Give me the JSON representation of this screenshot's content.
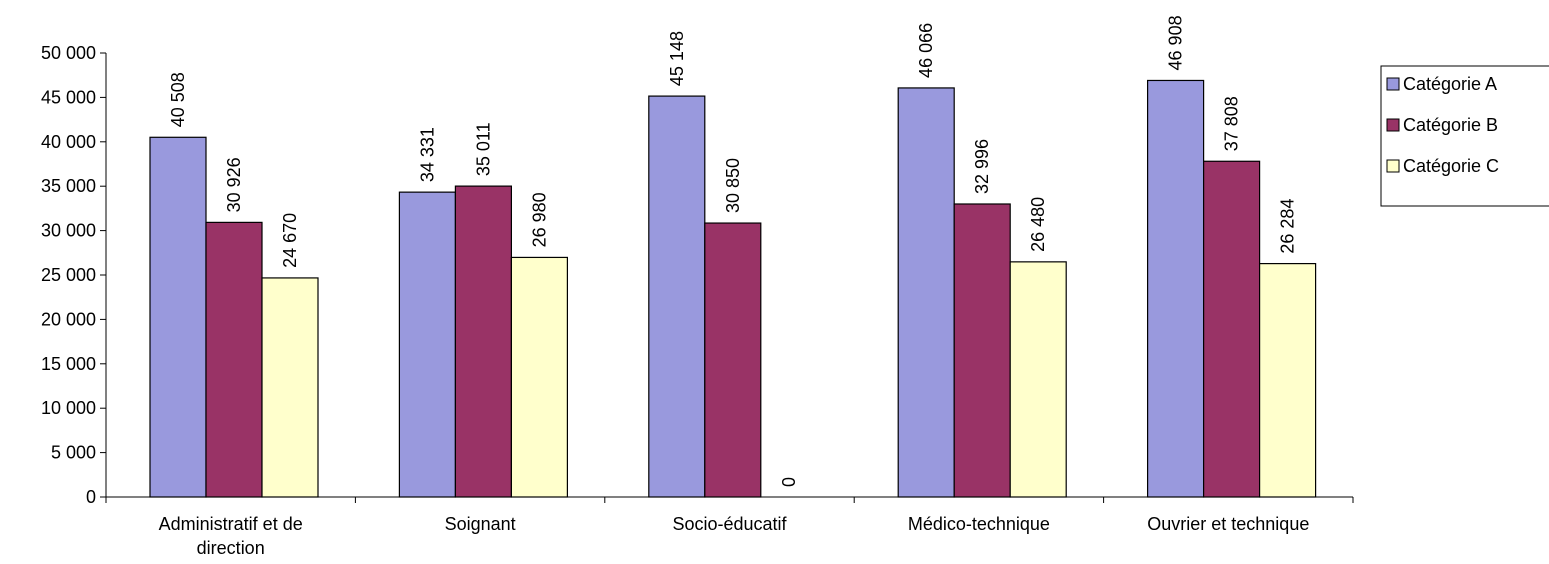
{
  "chart_data": {
    "type": "bar",
    "title": "",
    "xlabel": "",
    "ylabel": "",
    "ylim": [
      0,
      50000
    ],
    "yticks": [
      0,
      5000,
      10000,
      15000,
      20000,
      25000,
      30000,
      35000,
      40000,
      45000,
      50000
    ],
    "ytick_labels": [
      "0",
      "5 000",
      "10 000",
      "15 000",
      "20 000",
      "25 000",
      "30 000",
      "35 000",
      "40 000",
      "45 000",
      "50 000"
    ],
    "categories": [
      [
        "Administratif et de",
        "direction"
      ],
      [
        "Soignant"
      ],
      [
        "Socio-éducatif"
      ],
      [
        "Médico-technique"
      ],
      [
        "Ouvrier et technique"
      ]
    ],
    "series": [
      {
        "name": "Catégorie A",
        "color": "#9999dd",
        "values": [
          40508,
          34331,
          45148,
          46066,
          46908
        ],
        "labels": [
          "40 508",
          "34 331",
          "45 148",
          "46 066",
          "46 908"
        ]
      },
      {
        "name": "Catégorie B",
        "color": "#993366",
        "values": [
          30926,
          35011,
          30850,
          32996,
          37808
        ],
        "labels": [
          "30 926",
          "35 011",
          "30 850",
          "32 996",
          "37 808"
        ]
      },
      {
        "name": "Catégorie C",
        "color": "#ffffcc",
        "values": [
          24670,
          26980,
          0,
          26480,
          26284
        ],
        "labels": [
          "24 670",
          "26 980",
          "0",
          "26 480",
          "26 284"
        ]
      }
    ],
    "grid": false,
    "legend_position": "right"
  }
}
